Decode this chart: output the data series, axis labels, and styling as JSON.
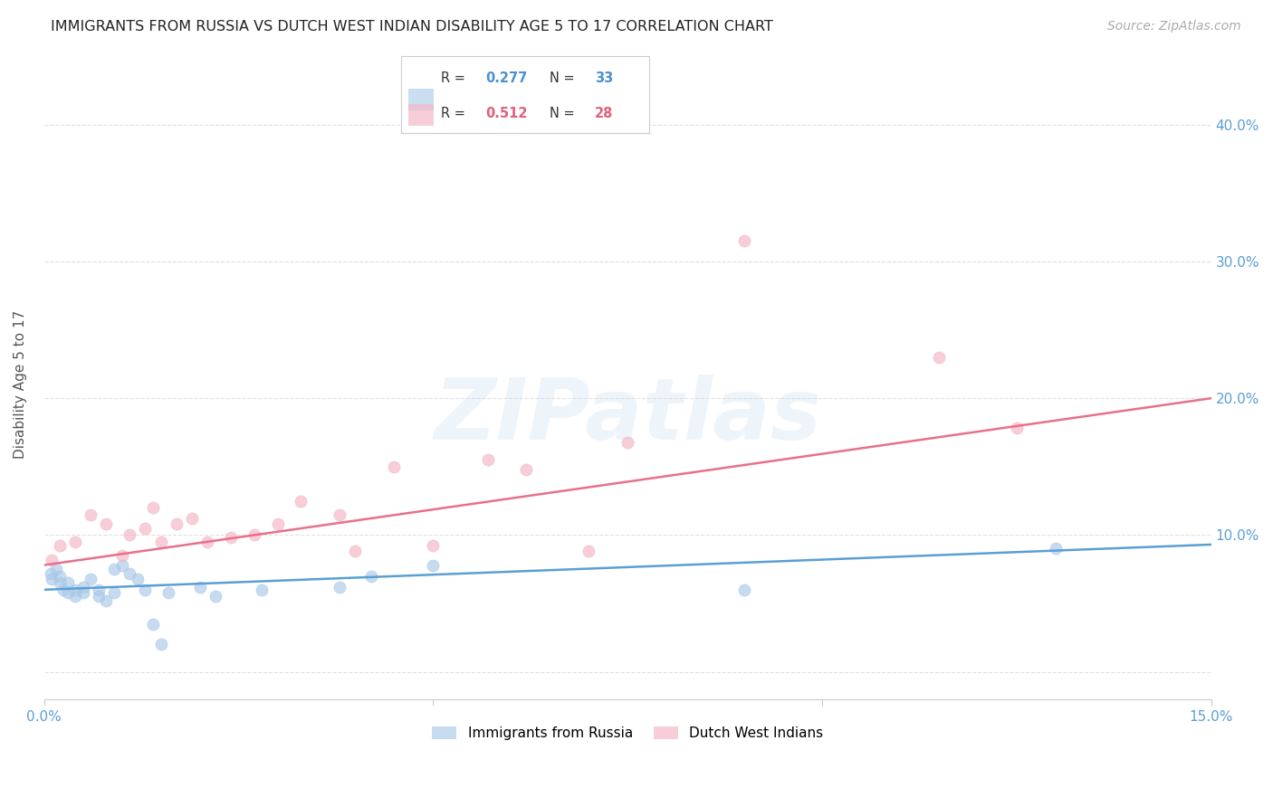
{
  "title": "IMMIGRANTS FROM RUSSIA VS DUTCH WEST INDIAN DISABILITY AGE 5 TO 17 CORRELATION CHART",
  "source": "Source: ZipAtlas.com",
  "ylabel": "Disability Age 5 to 17",
  "xlim": [
    0.0,
    0.15
  ],
  "ylim": [
    -0.02,
    0.44
  ],
  "yticks": [
    0.0,
    0.1,
    0.2,
    0.3,
    0.4
  ],
  "xticks": [
    0.0,
    0.05,
    0.1,
    0.15
  ],
  "xtick_labels": [
    "0.0%",
    "",
    "",
    "15.0%"
  ],
  "ytick_labels_right": [
    "",
    "10.0%",
    "20.0%",
    "30.0%",
    "40.0%"
  ],
  "color_blue": "#a8c8e8",
  "color_pink": "#f4b8c8",
  "color_blue_line": "#5a9fd4",
  "color_pink_line": "#e8708a",
  "color_blue_text": "#4a90d4",
  "color_pink_text": "#e0607a",
  "color_axis_text": "#5a9fd4",
  "watermark_text": "ZIPatlas",
  "legend_r1": "0.277",
  "legend_n1": "33",
  "legend_r2": "0.512",
  "legend_n2": "28",
  "blue_x": [
    0.0008,
    0.001,
    0.0015,
    0.002,
    0.002,
    0.0025,
    0.003,
    0.003,
    0.004,
    0.004,
    0.005,
    0.005,
    0.006,
    0.007,
    0.007,
    0.008,
    0.009,
    0.009,
    0.01,
    0.011,
    0.012,
    0.013,
    0.014,
    0.015,
    0.016,
    0.02,
    0.022,
    0.028,
    0.038,
    0.042,
    0.05,
    0.09,
    0.13
  ],
  "blue_y": [
    0.072,
    0.068,
    0.075,
    0.065,
    0.07,
    0.06,
    0.058,
    0.065,
    0.055,
    0.06,
    0.058,
    0.062,
    0.068,
    0.06,
    0.055,
    0.052,
    0.058,
    0.075,
    0.078,
    0.072,
    0.068,
    0.06,
    0.035,
    0.02,
    0.058,
    0.062,
    0.055,
    0.06,
    0.062,
    0.07,
    0.078,
    0.06,
    0.09
  ],
  "pink_x": [
    0.001,
    0.002,
    0.004,
    0.006,
    0.008,
    0.01,
    0.011,
    0.013,
    0.014,
    0.015,
    0.017,
    0.019,
    0.021,
    0.024,
    0.027,
    0.03,
    0.033,
    0.038,
    0.04,
    0.045,
    0.05,
    0.057,
    0.062,
    0.07,
    0.075,
    0.09,
    0.115,
    0.125
  ],
  "pink_y": [
    0.082,
    0.092,
    0.095,
    0.115,
    0.108,
    0.085,
    0.1,
    0.105,
    0.12,
    0.095,
    0.108,
    0.112,
    0.095,
    0.098,
    0.1,
    0.108,
    0.125,
    0.115,
    0.088,
    0.15,
    0.092,
    0.155,
    0.148,
    0.088,
    0.168,
    0.315,
    0.23,
    0.178
  ],
  "blue_trend_x": [
    0.0,
    0.15
  ],
  "blue_trend_y": [
    0.06,
    0.093
  ],
  "pink_trend_x": [
    0.0,
    0.15
  ],
  "pink_trend_y": [
    0.078,
    0.2
  ],
  "background_color": "#ffffff",
  "grid_color": "#e0e0e0",
  "title_fontsize": 11.5,
  "axis_label_fontsize": 11,
  "tick_fontsize": 11,
  "source_fontsize": 10
}
